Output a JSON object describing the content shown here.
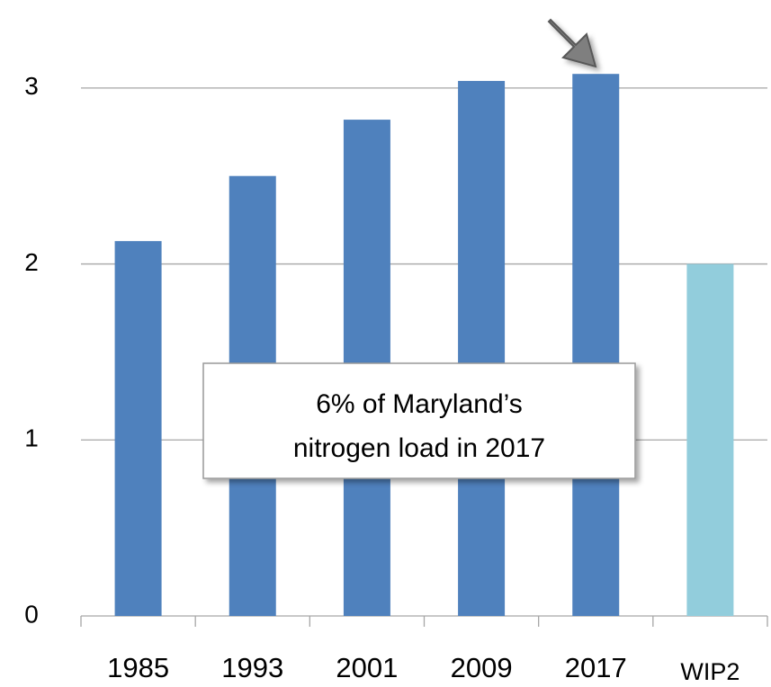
{
  "chart_data": {
    "type": "bar",
    "categories": [
      "1985",
      "1993",
      "2001",
      "2009",
      "2017",
      "WIP2"
    ],
    "values": [
      2.13,
      2.5,
      2.82,
      3.04,
      3.08,
      2.0
    ],
    "colors": [
      "#4f81bd",
      "#4f81bd",
      "#4f81bd",
      "#4f81bd",
      "#4f81bd",
      "#92cddc"
    ],
    "ylim": [
      0,
      3.5
    ],
    "yticks": [
      0,
      1,
      2,
      3
    ],
    "grid": true,
    "annotation": [
      "6% of Maryland’s",
      "nitrogen load in 2017"
    ]
  }
}
